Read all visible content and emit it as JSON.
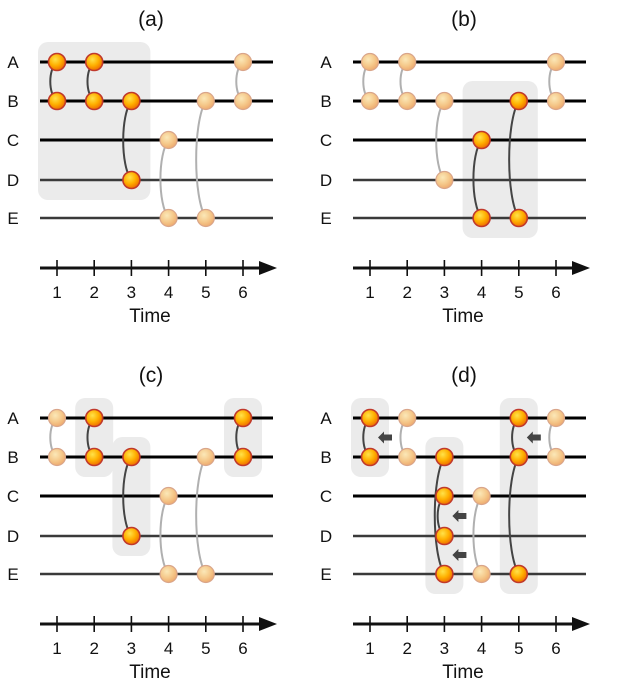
{
  "lanes": [
    "A",
    "B",
    "C",
    "D",
    "E"
  ],
  "time_ticks": [
    "1",
    "2",
    "3",
    "4",
    "5",
    "6"
  ],
  "axis_title": "Time",
  "colors": {
    "node_fill_active": "#f57c00",
    "node_fill_faded": "#f2b884",
    "node_stroke": "#c0392b",
    "lane_dark": "#000000",
    "lane_mid": "#3a3a3a",
    "edge_dark": "#444444",
    "edge_light": "#b0b0b0",
    "highlight": "#ebebeb",
    "arrow": "#444444"
  },
  "panels": [
    {
      "label": "(a)",
      "highlights": [
        {
          "t0": 1,
          "t1": 3,
          "l0": 0,
          "l1": 3
        }
      ],
      "edges": [
        {
          "t": 1,
          "a": 0,
          "b": 1,
          "active": true
        },
        {
          "t": 2,
          "a": 0,
          "b": 1,
          "active": true
        },
        {
          "t": 3,
          "a": 1,
          "b": 3,
          "active": true
        },
        {
          "t": 4,
          "a": 2,
          "b": 4,
          "active": false
        },
        {
          "t": 5,
          "a": 1,
          "b": 4,
          "active": false
        },
        {
          "t": 6,
          "a": 0,
          "b": 1,
          "active": false
        }
      ],
      "nodes": [
        {
          "t": 1,
          "l": 0,
          "active": true
        },
        {
          "t": 1,
          "l": 1,
          "active": true
        },
        {
          "t": 2,
          "l": 0,
          "active": true
        },
        {
          "t": 2,
          "l": 1,
          "active": true
        },
        {
          "t": 3,
          "l": 1,
          "active": true
        },
        {
          "t": 3,
          "l": 3,
          "active": true
        },
        {
          "t": 4,
          "l": 2,
          "active": false
        },
        {
          "t": 4,
          "l": 4,
          "active": false
        },
        {
          "t": 5,
          "l": 1,
          "active": false
        },
        {
          "t": 5,
          "l": 4,
          "active": false
        },
        {
          "t": 6,
          "l": 0,
          "active": false
        },
        {
          "t": 6,
          "l": 1,
          "active": false
        }
      ],
      "arrows": []
    },
    {
      "label": "(b)",
      "highlights": [
        {
          "t0": 4,
          "t1": 5,
          "l0": 1,
          "l1": 4
        }
      ],
      "edges": [
        {
          "t": 1,
          "a": 0,
          "b": 1,
          "active": false
        },
        {
          "t": 2,
          "a": 0,
          "b": 1,
          "active": false
        },
        {
          "t": 3,
          "a": 1,
          "b": 3,
          "active": false
        },
        {
          "t": 4,
          "a": 2,
          "b": 4,
          "active": true
        },
        {
          "t": 5,
          "a": 1,
          "b": 4,
          "active": true
        },
        {
          "t": 6,
          "a": 0,
          "b": 1,
          "active": false
        }
      ],
      "nodes": [
        {
          "t": 1,
          "l": 0,
          "active": false
        },
        {
          "t": 1,
          "l": 1,
          "active": false
        },
        {
          "t": 2,
          "l": 0,
          "active": false
        },
        {
          "t": 2,
          "l": 1,
          "active": false
        },
        {
          "t": 3,
          "l": 1,
          "active": false
        },
        {
          "t": 3,
          "l": 3,
          "active": false
        },
        {
          "t": 4,
          "l": 2,
          "active": true
        },
        {
          "t": 4,
          "l": 4,
          "active": true
        },
        {
          "t": 5,
          "l": 1,
          "active": true
        },
        {
          "t": 5,
          "l": 4,
          "active": true
        },
        {
          "t": 6,
          "l": 0,
          "active": false
        },
        {
          "t": 6,
          "l": 1,
          "active": false
        }
      ],
      "arrows": []
    },
    {
      "label": "(c)",
      "highlights": [
        {
          "t0": 2,
          "t1": 2,
          "l0": 0,
          "l1": 1
        },
        {
          "t0": 3,
          "t1": 3,
          "l0": 1,
          "l1": 3
        },
        {
          "t0": 6,
          "t1": 6,
          "l0": 0,
          "l1": 1
        }
      ],
      "edges": [
        {
          "t": 1,
          "a": 0,
          "b": 1,
          "active": false
        },
        {
          "t": 2,
          "a": 0,
          "b": 1,
          "active": true
        },
        {
          "t": 3,
          "a": 1,
          "b": 3,
          "active": true
        },
        {
          "t": 4,
          "a": 2,
          "b": 4,
          "active": false
        },
        {
          "t": 5,
          "a": 1,
          "b": 4,
          "active": false
        },
        {
          "t": 6,
          "a": 0,
          "b": 1,
          "active": true
        }
      ],
      "nodes": [
        {
          "t": 1,
          "l": 0,
          "active": false
        },
        {
          "t": 1,
          "l": 1,
          "active": false
        },
        {
          "t": 2,
          "l": 0,
          "active": true
        },
        {
          "t": 2,
          "l": 1,
          "active": true
        },
        {
          "t": 3,
          "l": 1,
          "active": true
        },
        {
          "t": 3,
          "l": 3,
          "active": true
        },
        {
          "t": 4,
          "l": 2,
          "active": false
        },
        {
          "t": 4,
          "l": 4,
          "active": false
        },
        {
          "t": 5,
          "l": 1,
          "active": false
        },
        {
          "t": 5,
          "l": 4,
          "active": false
        },
        {
          "t": 6,
          "l": 0,
          "active": true
        },
        {
          "t": 6,
          "l": 1,
          "active": true
        }
      ],
      "arrows": []
    },
    {
      "label": "(d)",
      "highlights": [
        {
          "t0": 1,
          "t1": 1,
          "l0": 0,
          "l1": 1
        },
        {
          "t0": 3,
          "t1": 3,
          "l0": 1,
          "l1": 4
        },
        {
          "t0": 5,
          "t1": 5,
          "l0": 0,
          "l1": 4
        }
      ],
      "edges": [
        {
          "t": 1,
          "a": 0,
          "b": 1,
          "active": true
        },
        {
          "t": 2,
          "a": 0,
          "b": 1,
          "active": false
        },
        {
          "t": 3,
          "a": 1,
          "b": 4,
          "active": true
        },
        {
          "t": 3,
          "a": 2,
          "b": 3,
          "active": true
        },
        {
          "t": 4,
          "a": 2,
          "b": 4,
          "active": false
        },
        {
          "t": 5,
          "a": 0,
          "b": 1,
          "active": true
        },
        {
          "t": 5,
          "a": 1,
          "b": 4,
          "active": true
        },
        {
          "t": 6,
          "a": 0,
          "b": 1,
          "active": false
        }
      ],
      "nodes": [
        {
          "t": 1,
          "l": 0,
          "active": true
        },
        {
          "t": 1,
          "l": 1,
          "active": true
        },
        {
          "t": 2,
          "l": 0,
          "active": false
        },
        {
          "t": 2,
          "l": 1,
          "active": false
        },
        {
          "t": 3,
          "l": 1,
          "active": true
        },
        {
          "t": 3,
          "l": 2,
          "active": true
        },
        {
          "t": 3,
          "l": 3,
          "active": true
        },
        {
          "t": 3,
          "l": 4,
          "active": true
        },
        {
          "t": 4,
          "l": 2,
          "active": false
        },
        {
          "t": 4,
          "l": 4,
          "active": false
        },
        {
          "t": 5,
          "l": 0,
          "active": true
        },
        {
          "t": 5,
          "l": 1,
          "active": true
        },
        {
          "t": 5,
          "l": 4,
          "active": true
        },
        {
          "t": 6,
          "l": 0,
          "active": false
        },
        {
          "t": 6,
          "l": 1,
          "active": false
        }
      ],
      "arrows": [
        {
          "t": 1,
          "between": [
            0,
            1
          ]
        },
        {
          "t": 3,
          "between": [
            2,
            3
          ]
        },
        {
          "t": 3,
          "between": [
            3,
            4
          ]
        },
        {
          "t": 5,
          "between": [
            0,
            1
          ]
        }
      ]
    }
  ]
}
